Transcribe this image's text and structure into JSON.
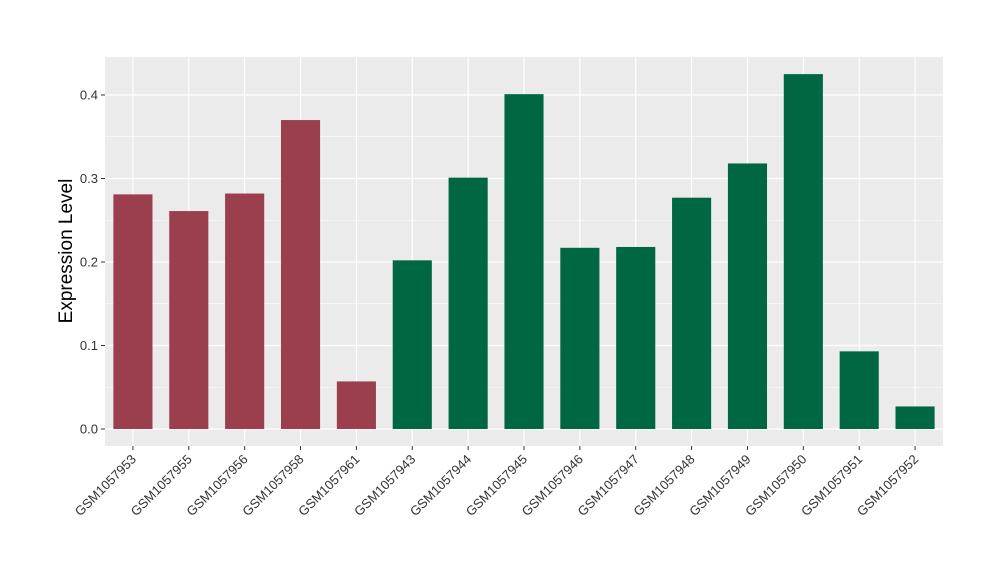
{
  "chart_data": {
    "type": "bar",
    "title": "",
    "xlabel": "",
    "ylabel": "Expression Level",
    "ylim": [
      -0.02,
      0.445
    ],
    "y_ticks": [
      0.0,
      0.1,
      0.2,
      0.3,
      0.4
    ],
    "y_tick_labels": [
      "0.0",
      "0.1",
      "0.2",
      "0.3",
      "0.4"
    ],
    "grid": true,
    "legend": "none",
    "categories": [
      "GSM1057953",
      "GSM1057955",
      "GSM1057956",
      "GSM1057958",
      "GSM1057961",
      "GSM1057943",
      "GSM1057944",
      "GSM1057945",
      "GSM1057946",
      "GSM1057947",
      "GSM1057948",
      "GSM1057949",
      "GSM1057950",
      "GSM1057951",
      "GSM1057952"
    ],
    "values": [
      0.281,
      0.261,
      0.282,
      0.37,
      0.057,
      0.202,
      0.301,
      0.401,
      0.217,
      0.218,
      0.277,
      0.318,
      0.425,
      0.093,
      0.027
    ],
    "bar_colors": [
      "#9b3f4e",
      "#9b3f4e",
      "#9b3f4e",
      "#9b3f4e",
      "#9b3f4e",
      "#006743",
      "#006743",
      "#006743",
      "#006743",
      "#006743",
      "#006743",
      "#006743",
      "#006743",
      "#006743",
      "#006743"
    ],
    "panel_background": "#ebebeb",
    "grid_color": "#ffffff"
  }
}
